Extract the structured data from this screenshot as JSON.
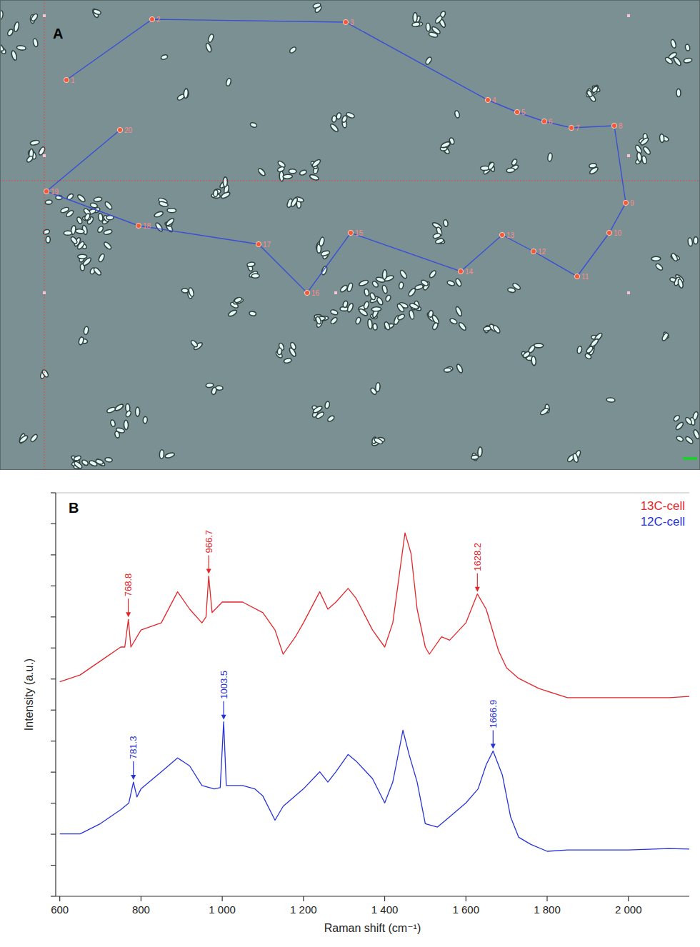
{
  "chart_data": [
    {
      "panel": "A",
      "type": "scatter",
      "line_style": "solid",
      "marker": "circle",
      "color": "#3b4fd4",
      "x": [
        93,
        213,
        484,
        683,
        724,
        762,
        800,
        860,
        876,
        853,
        808,
        747,
        703,
        645,
        491,
        430,
        362,
        194,
        65,
        168
      ],
      "values": [
        112,
        27,
        31,
        140,
        157,
        170,
        179,
        176,
        284,
        326,
        387,
        352,
        329,
        380,
        326,
        410,
        342,
        316,
        268,
        182
      ],
      "point_labels": [
        "1",
        "2",
        "3",
        "4",
        "5",
        "6",
        "7",
        "8",
        "9",
        "10",
        "11",
        "12",
        "13",
        "14",
        "15",
        "16",
        "17",
        "18",
        "19",
        "20"
      ],
      "xlim": [
        0,
        980
      ],
      "ylim": [
        658,
        0
      ],
      "tick_labels": false
    },
    {
      "panel": "B",
      "type": "line",
      "x_label": "Raman shift (cm⁻¹)",
      "y_label": "Intensity (a.u.)",
      "series": [
        {
          "name": "13C-cell",
          "color": "#e3262b",
          "x": [
            600,
            650,
            700,
            750,
            760,
            768.8,
            775,
            800,
            850,
            890,
            920,
            950,
            960,
            966.7,
            975,
            1000,
            1050,
            1100,
            1130,
            1150,
            1180,
            1200,
            1240,
            1260,
            1280,
            1310,
            1330,
            1370,
            1400,
            1420,
            1450,
            1465,
            1480,
            1500,
            1510,
            1540,
            1560,
            1600,
            1628.2,
            1650,
            1680,
            1700,
            1730,
            1780,
            1850,
            2000,
            2100,
            2150
          ],
          "values": [
            6.91,
            7.13,
            7.58,
            8.03,
            8.03,
            8.92,
            8.03,
            8.58,
            8.81,
            9.81,
            9.25,
            8.81,
            9.0,
            10.32,
            9.14,
            9.48,
            9.48,
            9.14,
            8.58,
            7.8,
            8.36,
            8.81,
            9.81,
            9.25,
            9.48,
            9.92,
            9.59,
            8.58,
            8.03,
            8.81,
            11.71,
            11.04,
            9.25,
            8.03,
            7.8,
            8.36,
            8.25,
            8.81,
            9.74,
            9.25,
            7.92,
            7.36,
            7.02,
            6.69,
            6.4,
            6.4,
            6.4,
            6.44
          ]
        },
        {
          "name": "12C-cell",
          "color": "#2633d6",
          "x": [
            600,
            650,
            700,
            750,
            770,
            781.3,
            790,
            800,
            850,
            890,
            920,
            950,
            980,
            995,
            1003.5,
            1010,
            1050,
            1080,
            1100,
            1130,
            1150,
            1200,
            1240,
            1260,
            1280,
            1310,
            1330,
            1370,
            1400,
            1420,
            1445,
            1460,
            1480,
            1500,
            1530,
            1560,
            1600,
            1630,
            1650,
            1666.9,
            1690,
            1710,
            1730,
            1760,
            1800,
            1850,
            2000,
            2100,
            2150
          ],
          "values": [
            2.01,
            2.01,
            2.34,
            2.79,
            3.0,
            3.68,
            3.2,
            3.46,
            4.01,
            4.46,
            4.2,
            3.57,
            3.46,
            3.5,
            5.62,
            3.57,
            3.57,
            3.46,
            3.23,
            2.45,
            2.9,
            3.46,
            4.01,
            3.68,
            4.01,
            4.57,
            4.35,
            3.79,
            3.01,
            3.68,
            5.35,
            4.57,
            3.68,
            2.34,
            2.23,
            2.56,
            3.01,
            3.46,
            4.24,
            4.68,
            3.9,
            2.56,
            1.9,
            1.67,
            1.45,
            1.49,
            1.49,
            1.54,
            1.52
          ]
        }
      ],
      "xlim": [
        590,
        2150
      ],
      "ylim": [
        0,
        13
      ],
      "xticks": [
        600,
        800,
        {
          "value": 1000,
          "label": "1 000"
        },
        {
          "value": 1200,
          "label": "1 200"
        },
        {
          "value": 1400,
          "label": "1 400"
        },
        {
          "value": 1600,
          "label": "1 600"
        },
        {
          "value": 1800,
          "label": "1 800"
        },
        {
          "value": 2000,
          "label": "2 000"
        }
      ],
      "yticks": [
        0,
        1,
        2,
        3,
        4,
        5,
        6,
        7,
        8,
        9,
        10,
        11,
        12,
        13
      ],
      "tick_labels": "x",
      "legend": "upper right",
      "annotations": [
        {
          "text": "768.8",
          "x": 768.8,
          "y": 8.92,
          "color": "#e3262b"
        },
        {
          "text": "966.7",
          "x": 966.7,
          "y": 10.32,
          "color": "#e3262b"
        },
        {
          "text": "1628.2",
          "x": 1628.2,
          "y": 9.74,
          "color": "#e3262b"
        },
        {
          "text": "781.3",
          "x": 781.3,
          "y": 3.68,
          "color": "#2633d6"
        },
        {
          "text": "1003.5",
          "x": 1003.5,
          "y": 5.62,
          "color": "#2633d6"
        },
        {
          "text": "1666.9",
          "x": 1666.9,
          "y": 4.68,
          "color": "#2633d6"
        }
      ]
    }
  ]
}
